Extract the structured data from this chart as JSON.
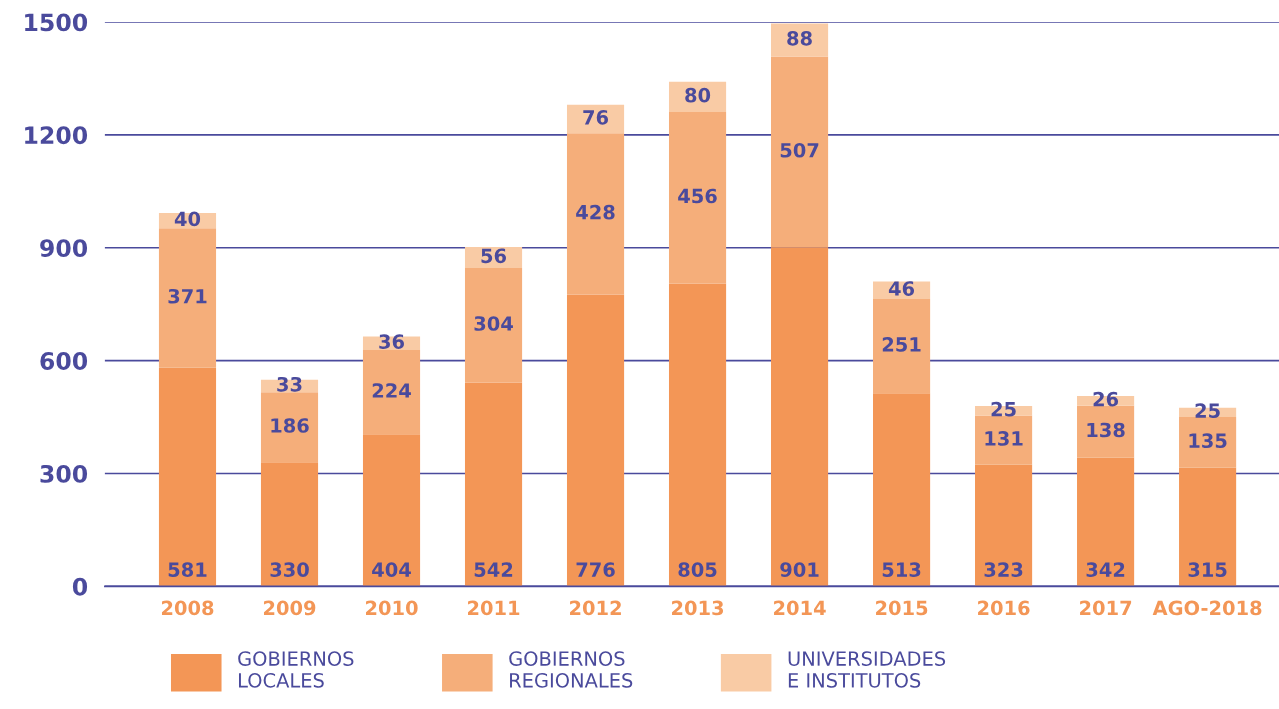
{
  "chart_data": {
    "type": "bar",
    "stacked": true,
    "data_labels": true,
    "grid": "y",
    "legend": "bottom",
    "categories": [
      "2008",
      "2009",
      "2010",
      "2011",
      "2012",
      "2013",
      "2014",
      "2015",
      "2016",
      "2017",
      "AGO-2018"
    ],
    "ylim": [
      0,
      1500
    ],
    "yticks": [
      0,
      300,
      600,
      900,
      1200,
      1500
    ],
    "series": [
      {
        "name": "GOBIERNOS\nLOCALES",
        "color": "#f39656",
        "values": [
          581,
          330,
          404,
          542,
          776,
          805,
          901,
          513,
          323,
          342,
          315
        ]
      },
      {
        "name": "GOBIERNOS\nREGIONALES",
        "color": "#f5ae7a",
        "values": [
          371,
          186,
          224,
          304,
          428,
          456,
          507,
          251,
          131,
          138,
          135
        ]
      },
      {
        "name": "UNIVERSIDADES\nE INSTITUTOS",
        "color": "#f9cba5",
        "values": [
          40,
          33,
          36,
          56,
          76,
          80,
          88,
          46,
          25,
          26,
          25
        ]
      }
    ]
  }
}
